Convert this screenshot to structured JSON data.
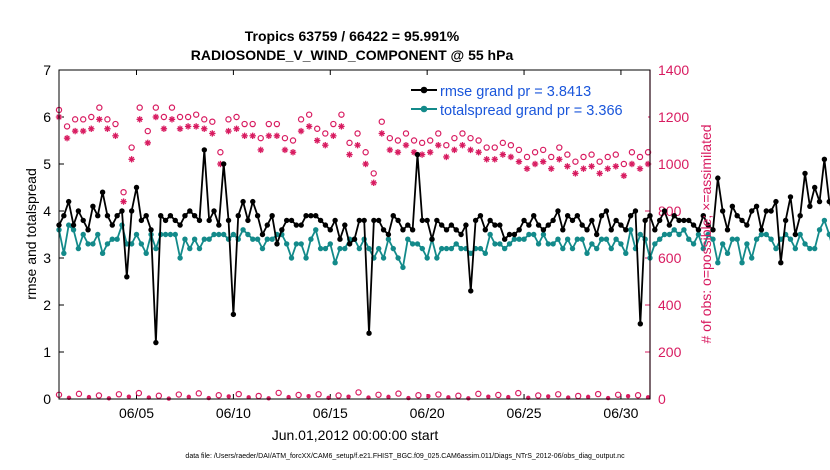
{
  "colors": {
    "rmse": "#000000",
    "spread": "#138a8a",
    "obs": "#d81b60",
    "legend_text": "#1a56db",
    "axis": "#000000",
    "right_axis": "#d81b60"
  },
  "chart_data": {
    "type": "line",
    "title_line1": "Tropics 63759 / 66422 = 95.991%",
    "title_line2": "RADIOSONDE_V_WIND_COMPONENT @ 55 hPa",
    "xlabel": "Jun.01,2012 00:00:00 start",
    "ylabel_left": "rmse and totalspread",
    "ylabel_right": "# of obs: o=possible; ×=assimilated",
    "footnote": "data file: /Users/raeder/DAI/ATM_forcXX/CAM6_setup/f.e21.FHIST_BGC.f09_025.CAM6assim.011/Diags_NTrS_2012-06/obs_diag_output.nc",
    "xlim": [
      1,
      31.5
    ],
    "ylim_left": [
      0,
      7
    ],
    "ylim_right": [
      0,
      1400
    ],
    "x_ticks": [
      5,
      10,
      15,
      20,
      25,
      30
    ],
    "x_tick_labels": [
      "06/05",
      "06/10",
      "06/15",
      "06/20",
      "06/25",
      "06/30"
    ],
    "y_ticks_left": [
      0,
      1,
      2,
      3,
      4,
      5,
      6,
      7
    ],
    "y_tick_labels_left": [
      "0",
      "1",
      "2",
      "3",
      "4",
      "5",
      "6",
      "7"
    ],
    "y_ticks_right": [
      0,
      200,
      400,
      600,
      800,
      1000,
      1200,
      1400
    ],
    "y_tick_labels_right": [
      "0",
      "200",
      "400",
      "600",
      "800",
      "1000",
      "1200",
      "1400"
    ],
    "legend": [
      {
        "name": "rmse grand pr = 3.8413",
        "series": "rmse"
      },
      {
        "name": "totalspread grand pr = 3.366",
        "series": "spread"
      }
    ],
    "x_start": 1.0,
    "x_step": 0.25,
    "rmse": [
      3.7,
      3.9,
      4.2,
      3.7,
      4.0,
      3.8,
      3.6,
      4.1,
      3.9,
      4.4,
      3.9,
      3.7,
      3.9,
      4.0,
      2.6,
      4.0,
      4.5,
      3.8,
      3.9,
      3.6,
      1.2,
      3.9,
      3.8,
      3.9,
      3.8,
      3.7,
      3.9,
      4.0,
      3.9,
      3.8,
      5.3,
      3.8,
      4.0,
      3.7,
      5.0,
      3.8,
      1.8,
      3.9,
      4.2,
      3.8,
      4.2,
      3.9,
      3.5,
      3.7,
      3.9,
      3.3,
      3.6,
      3.8,
      3.8,
      3.7,
      3.7,
      3.9,
      3.9,
      3.9,
      3.8,
      3.7,
      3.6,
      3.8,
      3.4,
      3.7,
      3.3,
      3.4,
      3.8,
      3.8,
      1.4,
      3.8,
      3.8,
      3.6,
      3.5,
      3.9,
      3.8,
      3.6,
      3.7,
      3.6,
      5.2,
      3.8,
      3.8,
      3.4,
      3.8,
      3.7,
      3.6,
      3.7,
      3.6,
      3.5,
      3.7,
      2.3,
      3.8,
      3.9,
      3.6,
      3.8,
      3.7,
      3.7,
      3.4,
      3.5,
      3.5,
      3.6,
      3.8,
      3.7,
      3.9,
      3.7,
      3.6,
      3.7,
      3.8,
      4.0,
      3.6,
      3.9,
      3.8,
      3.9,
      3.7,
      3.6,
      3.8,
      3.5,
      3.9,
      4.0,
      3.6,
      3.8,
      3.7,
      3.6,
      3.9,
      4.0,
      1.6,
      3.8,
      3.9,
      3.6,
      3.8,
      4.0,
      3.7,
      3.9,
      3.8,
      3.8,
      3.8,
      3.7,
      3.6,
      3.9,
      3.7,
      3.6,
      4.7,
      4.0,
      3.6,
      4.1,
      3.9,
      3.8,
      3.7,
      4.0,
      4.1,
      3.6,
      4.0,
      4.0,
      4.2,
      2.9,
      3.8,
      4.3,
      3.5,
      3.9,
      4.8,
      4.1,
      4.5,
      4.2,
      5.1,
      4.2,
      3.9,
      2.7
    ],
    "spread": [
      3.6,
      3.1,
      3.7,
      3.6,
      3.2,
      3.5,
      3.3,
      3.3,
      3.5,
      3.1,
      3.3,
      3.4,
      3.4,
      3.7,
      3.3,
      3.3,
      3.5,
      3.3,
      3.1,
      3.5,
      3.2,
      3.5,
      3.5,
      3.5,
      3.5,
      3.0,
      3.4,
      3.2,
      3.4,
      3.2,
      3.4,
      3.4,
      3.5,
      3.5,
      3.5,
      3.4,
      3.5,
      3.4,
      3.6,
      3.5,
      3.4,
      3.4,
      3.2,
      3.4,
      3.4,
      3.5,
      3.5,
      3.3,
      3.0,
      3.3,
      3.3,
      3.0,
      3.4,
      3.6,
      3.2,
      3.2,
      3.3,
      2.9,
      3.2,
      3.2,
      3.4,
      3.4,
      3.2,
      3.4,
      3.2,
      3.0,
      3.2,
      3.0,
      3.4,
      3.2,
      3.0,
      2.8,
      3.4,
      3.3,
      3.3,
      3.2,
      3.0,
      3.4,
      3.0,
      3.2,
      3.2,
      3.2,
      3.3,
      3.2,
      3.2,
      3.1,
      3.2,
      3.2,
      3.1,
      3.5,
      3.3,
      3.3,
      3.2,
      3.3,
      3.4,
      3.4,
      3.4,
      3.5,
      3.5,
      3.3,
      3.5,
      3.3,
      3.3,
      3.4,
      3.2,
      3.4,
      3.2,
      3.4,
      3.4,
      3.1,
      3.3,
      3.2,
      3.4,
      3.4,
      3.2,
      3.4,
      3.3,
      3.1,
      3.6,
      3.2,
      3.5,
      3.4,
      3.0,
      3.3,
      3.4,
      3.5,
      3.5,
      3.6,
      3.5,
      3.6,
      3.4,
      3.3,
      3.5,
      3.2,
      3.5,
      3.4,
      2.9,
      3.3,
      3.1,
      3.4,
      3.4,
      2.9,
      3.3,
      3.0,
      3.4,
      3.5,
      3.5,
      3.4,
      3.2,
      3.4,
      3.5,
      3.4,
      3.2,
      3.5,
      3.3,
      3.2,
      3.2,
      3.6,
      3.8,
      3.5,
      3.1,
      3.1
    ],
    "obs_possible_top": [
      1230,
      1160,
      1190,
      1190,
      1200,
      1240,
      1190,
      1170,
      880,
      1070,
      1240,
      1140,
      1240,
      1200,
      1240,
      1200,
      1200,
      1210,
      1190,
      1180,
      1050,
      1190,
      1200,
      1170,
      1170,
      1110,
      1170,
      1170,
      1110,
      1100,
      1190,
      1210,
      1150,
      1130,
      1170,
      1210,
      1090,
      1130,
      1050,
      960,
      1180,
      1110,
      1100,
      1130,
      1100,
      1090,
      1100,
      1130,
      1080,
      1110,
      1130,
      1110,
      1100,
      1070,
      1070,
      1090,
      1080,
      1060,
      1030,
      1050,
      1060,
      1030,
      1070,
      1040,
      1010,
      1030,
      1040,
      1010,
      1030,
      1040,
      1000,
      1050,
      1030,
      1050
    ],
    "obs_assimilated_top": [
      1200,
      1110,
      1140,
      1140,
      1150,
      1190,
      1150,
      1120,
      840,
      1020,
      1190,
      1090,
      1200,
      1150,
      1190,
      1150,
      1160,
      1160,
      1150,
      1130,
      1000,
      1140,
      1150,
      1120,
      1120,
      1060,
      1120,
      1120,
      1060,
      1050,
      1140,
      1160,
      1100,
      1080,
      1120,
      1160,
      1040,
      1080,
      1000,
      920,
      1130,
      1060,
      1050,
      1080,
      1050,
      1040,
      1050,
      1080,
      1030,
      1060,
      1080,
      1060,
      1050,
      1020,
      1020,
      1040,
      1030,
      1010,
      980,
      1000,
      1010,
      980,
      1020,
      990,
      960,
      980,
      990,
      960,
      980,
      990,
      950,
      1000,
      980,
      1000
    ],
    "obs_low": [
      18,
      5,
      22,
      8,
      15,
      3,
      20,
      10,
      25,
      6,
      14,
      2,
      19,
      9,
      24,
      4,
      16,
      11,
      21,
      7,
      13,
      3,
      26,
      8,
      17,
      12,
      20,
      5,
      15,
      10,
      28,
      6,
      18,
      9,
      23,
      4,
      16,
      12,
      19,
      7,
      14,
      3,
      22,
      10,
      17,
      8,
      25,
      5,
      15,
      11,
      20,
      6,
      13,
      9,
      21,
      4,
      18,
      12,
      16,
      7
    ]
  }
}
